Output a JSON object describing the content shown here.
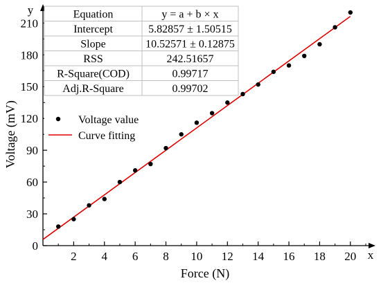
{
  "chart_data": {
    "type": "scatter",
    "xlabel": "Force (N)",
    "ylabel": "Voltage (mV)",
    "x_axis_arrow_label": "x",
    "y_axis_arrow_label": "y",
    "xlim": [
      0,
      21
    ],
    "ylim": [
      0,
      220
    ],
    "x_ticks": [
      2,
      4,
      6,
      8,
      10,
      12,
      14,
      16,
      18,
      20
    ],
    "y_ticks": [
      0,
      30,
      60,
      90,
      120,
      150,
      180,
      210
    ],
    "x_tick_labels": [
      "2",
      "4",
      "6",
      "8",
      "10",
      "12",
      "14",
      "16",
      "18",
      "20"
    ],
    "y_tick_labels": [
      "0",
      "30",
      "60",
      "90",
      "120",
      "150",
      "180",
      "210"
    ],
    "grid": false,
    "legend_position": "upper-left",
    "series": [
      {
        "name": "Voltage value",
        "kind": "points",
        "color": "#000000",
        "x": [
          1,
          2,
          3,
          4,
          5,
          6,
          7,
          8,
          9,
          10,
          11,
          12,
          13,
          14,
          15,
          16,
          17,
          18,
          19,
          20
        ],
        "y": [
          18,
          25,
          38,
          44,
          60,
          71,
          77,
          92,
          105,
          116,
          125,
          135,
          143,
          152,
          164,
          170,
          179,
          190,
          206,
          220
        ]
      },
      {
        "name": "Curve fitting",
        "kind": "line",
        "color": "#e00000",
        "intercept": 5.82857,
        "slope": 10.52571,
        "x_range": [
          0,
          20
        ]
      }
    ],
    "stats_table": {
      "rows": [
        [
          "Equation",
          "y = a + b × x"
        ],
        [
          "Intercept",
          "5.82857 ± 1.50515"
        ],
        [
          "Slope",
          "10.52571 ± 0.12875"
        ],
        [
          "RSS",
          "242.51657"
        ],
        [
          "R-Square(COD)",
          "0.99717"
        ],
        [
          "Adj.R-Square",
          "0.99702"
        ]
      ]
    }
  }
}
